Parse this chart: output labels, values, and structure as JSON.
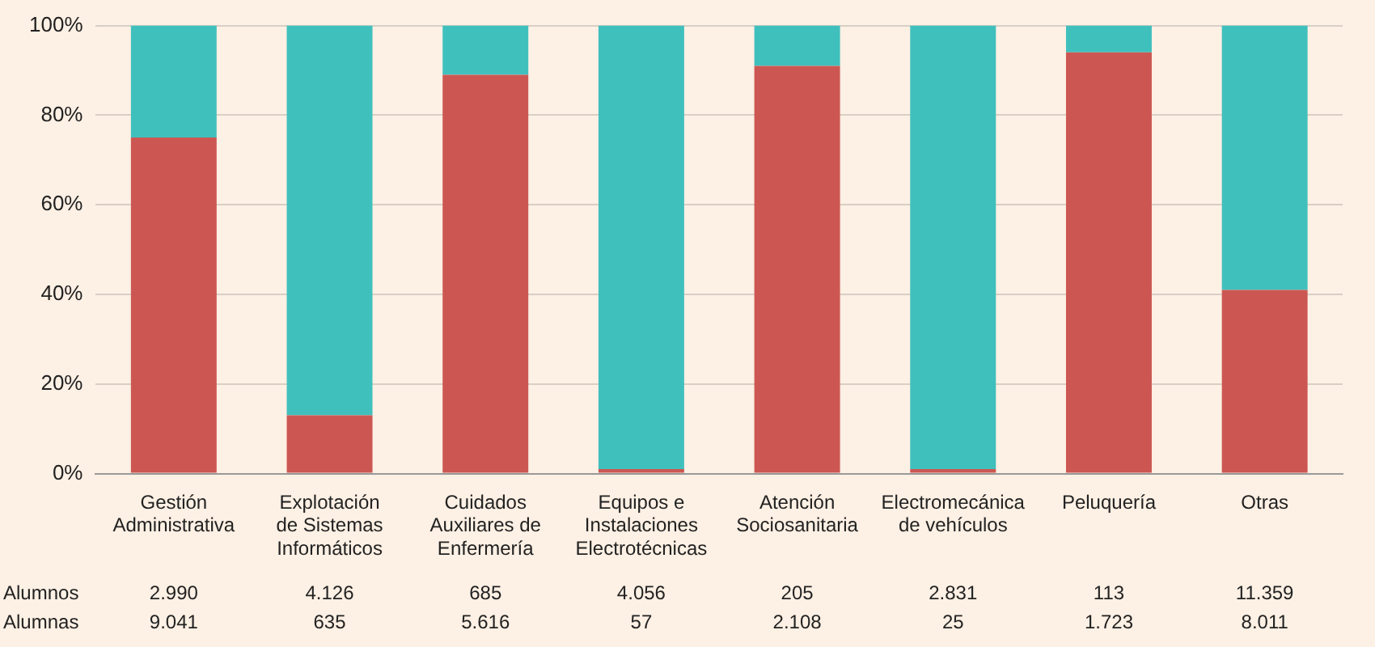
{
  "chart_data": {
    "type": "bar",
    "stacked": true,
    "categories": [
      "Gestión Administrativa",
      "Explotación de Sistemas Informáticos",
      "Cuidados Auxiliares de Enfermería",
      "Equipos e Instalaciones Electrotécnicas",
      "Atención Sociosanitaria",
      "Electromecánica de vehículos",
      "Peluquería",
      "Otras"
    ],
    "series": [
      {
        "color": "#cc5752",
        "values": [
          75,
          13,
          89,
          1,
          91,
          1,
          94,
          41
        ]
      },
      {
        "color": "#40c0bd",
        "values": [
          25,
          87,
          11,
          99,
          9,
          99,
          6,
          59
        ]
      }
    ],
    "annotations": [
      "Alumnos",
      "2.990",
      "4.126",
      "685",
      "4.056",
      "205",
      "2.831",
      "113",
      "11.359",
      "Alumnas",
      "9.041",
      "635",
      "5.616",
      "57",
      "2.108",
      "25",
      "1.723",
      "8.011"
    ],
    "ylim": [
      0,
      100
    ],
    "yticks": [
      {
        "value": 0,
        "label": "0%"
      },
      {
        "value": 20,
        "label": "20%"
      },
      {
        "value": 40,
        "label": "40%"
      },
      {
        "value": 60,
        "label": "60%"
      },
      {
        "value": 80,
        "label": "80%"
      },
      {
        "value": 100,
        "label": "100%"
      }
    ],
    "grid": "y",
    "legend": false
  }
}
